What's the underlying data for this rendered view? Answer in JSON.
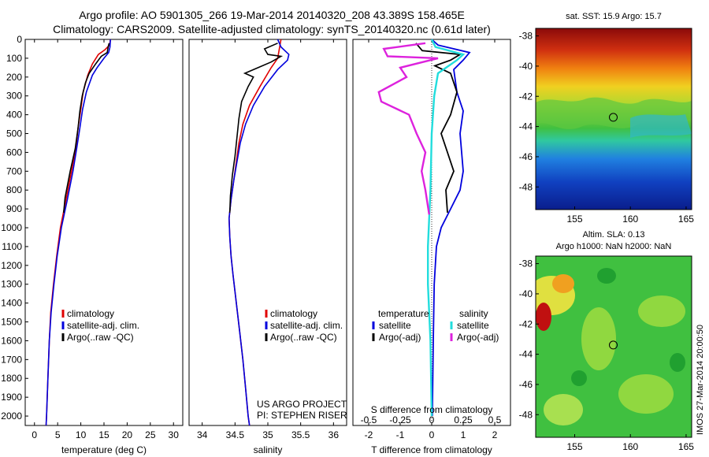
{
  "header": {
    "line1": "Argo profile: AO 5901305_266 19-Mar-2014 20140320_208 43.389S 158.465E",
    "line2": "Climatology: CARS2009. Satellite-adjusted climatology: synTS_20140320.nc (0.61d later)"
  },
  "side_text": "IMOS 27-Mar-2014 20:00:50",
  "colors": {
    "climatology": "#e00000",
    "satellite": "#0000dd",
    "argo": "#000000",
    "sal_satellite": "#22dddd",
    "sal_argo": "#dd22dd"
  },
  "chart_data": [
    {
      "id": "temperature-profile",
      "type": "line",
      "xlabel": "temperature (deg C)",
      "ylabel": "",
      "xlim": [
        -2,
        32
      ],
      "ylim": [
        2050,
        0
      ],
      "xticks": [
        0,
        5,
        10,
        15,
        20,
        25,
        30
      ],
      "yticks": [
        0,
        100,
        200,
        300,
        400,
        500,
        600,
        700,
        800,
        900,
        1000,
        1100,
        1200,
        1300,
        1400,
        1500,
        1600,
        1700,
        1800,
        1900,
        2000
      ],
      "legend": [
        "climatology",
        "satellite-adj. clim.",
        "Argo(..raw -QC)"
      ],
      "series": [
        {
          "name": "climatology",
          "color": "#e00000",
          "points": [
            [
              16.4,
              0
            ],
            [
              16.2,
              30
            ],
            [
              15.2,
              55
            ],
            [
              13.8,
              80
            ],
            [
              12.5,
              130
            ],
            [
              11.5,
              190
            ],
            [
              10.5,
              280
            ],
            [
              10,
              370
            ],
            [
              9.4,
              470
            ],
            [
              8.9,
              580
            ],
            [
              8,
              700
            ],
            [
              6.8,
              850
            ],
            [
              5.6,
              1000
            ],
            [
              4.8,
              1150
            ],
            [
              4.1,
              1300
            ],
            [
              3.5,
              1450
            ],
            [
              3.2,
              1600
            ],
            [
              2.9,
              1800
            ],
            [
              2.6,
              2000
            ],
            [
              2.5,
              2050
            ]
          ]
        },
        {
          "name": "satellite-adj. clim.",
          "color": "#0000dd",
          "points": [
            [
              16.4,
              0
            ],
            [
              16.3,
              40
            ],
            [
              16.0,
              70
            ],
            [
              15.0,
              100
            ],
            [
              13.5,
              150
            ],
            [
              12.5,
              190
            ],
            [
              11.2,
              280
            ],
            [
              10.4,
              370
            ],
            [
              9.8,
              470
            ],
            [
              9.1,
              580
            ],
            [
              8.3,
              700
            ],
            [
              7.1,
              850
            ],
            [
              5.8,
              1000
            ],
            [
              4.9,
              1150
            ],
            [
              4.2,
              1300
            ],
            [
              3.6,
              1450
            ],
            [
              3.2,
              1600
            ],
            [
              2.9,
              1800
            ],
            [
              2.6,
              2000
            ],
            [
              2.5,
              2050
            ]
          ]
        },
        {
          "name": "Argo(..raw -QC)",
          "color": "#000000",
          "points": [
            [
              16.1,
              20
            ],
            [
              15.9,
              40
            ],
            [
              15.7,
              70
            ],
            [
              14.4,
              90
            ],
            [
              13.2,
              130
            ],
            [
              11.8,
              180
            ],
            [
              11.0,
              230
            ],
            [
              10.3,
              300
            ],
            [
              9.8,
              380
            ],
            [
              9.4,
              470
            ],
            [
              8.8,
              580
            ],
            [
              7.7,
              700
            ],
            [
              6.6,
              840
            ],
            [
              6.3,
              920
            ]
          ]
        }
      ]
    },
    {
      "id": "salinity-profile",
      "type": "line",
      "xlabel": "salinity",
      "ylabel": "",
      "xlim": [
        33.8,
        36.2
      ],
      "ylim": [
        2050,
        0
      ],
      "xticks": [
        34,
        34.5,
        35,
        35.5,
        36
      ],
      "xticklabels": [
        "34",
        "34.5",
        "35",
        "35.5",
        "36"
      ],
      "legend": [
        "climatology",
        "satellite-adj. clim.",
        "Argo(..raw -QC)"
      ],
      "annotation": [
        "US ARGO PROJECT",
        "PI: STEPHEN RISER"
      ],
      "series": [
        {
          "name": "climatology",
          "color": "#e00000",
          "points": [
            [
              35.2,
              0
            ],
            [
              35.18,
              40
            ],
            [
              35.15,
              100
            ],
            [
              35.05,
              150
            ],
            [
              34.88,
              250
            ],
            [
              34.72,
              350
            ],
            [
              34.62,
              450
            ],
            [
              34.56,
              550
            ],
            [
              34.52,
              650
            ],
            [
              34.48,
              750
            ],
            [
              34.44,
              850
            ],
            [
              34.41,
              950
            ],
            [
              34.42,
              1050
            ],
            [
              34.44,
              1150
            ],
            [
              34.47,
              1250
            ],
            [
              34.52,
              1400
            ],
            [
              34.57,
              1550
            ],
            [
              34.62,
              1700
            ],
            [
              34.66,
              1850
            ],
            [
              34.7,
              2000
            ],
            [
              34.72,
              2050
            ]
          ]
        },
        {
          "name": "satellite-adj. clim.",
          "color": "#0000dd",
          "points": [
            [
              35.15,
              0
            ],
            [
              35.2,
              40
            ],
            [
              35.32,
              80
            ],
            [
              35.3,
              110
            ],
            [
              35.15,
              160
            ],
            [
              34.95,
              250
            ],
            [
              34.78,
              350
            ],
            [
              34.66,
              450
            ],
            [
              34.58,
              550
            ],
            [
              34.53,
              650
            ],
            [
              34.48,
              750
            ],
            [
              34.44,
              850
            ],
            [
              34.41,
              950
            ],
            [
              34.42,
              1050
            ],
            [
              34.44,
              1150
            ],
            [
              34.47,
              1250
            ],
            [
              34.52,
              1400
            ],
            [
              34.57,
              1550
            ],
            [
              34.62,
              1700
            ],
            [
              34.66,
              1850
            ],
            [
              34.7,
              2000
            ],
            [
              34.72,
              2050
            ]
          ]
        },
        {
          "name": "Argo(..raw -QC)",
          "color": "#000000",
          "points": [
            [
              35.15,
              20
            ],
            [
              34.95,
              50
            ],
            [
              35.0,
              80
            ],
            [
              35.2,
              90
            ],
            [
              35.05,
              120
            ],
            [
              34.85,
              150
            ],
            [
              34.65,
              180
            ],
            [
              34.78,
              200
            ],
            [
              34.7,
              250
            ],
            [
              34.6,
              330
            ],
            [
              34.56,
              420
            ],
            [
              34.53,
              520
            ],
            [
              34.5,
              620
            ],
            [
              34.46,
              720
            ],
            [
              34.43,
              830
            ],
            [
              34.42,
              920
            ]
          ]
        }
      ]
    },
    {
      "id": "difference-profile",
      "type": "line",
      "xlabel": "T difference from climatology",
      "xlabel_top": "S difference from climatology",
      "ylabel": "",
      "xlim": [
        -2.5,
        2.5
      ],
      "ylim": [
        2050,
        0
      ],
      "xticks": [
        -2,
        -1,
        0,
        1,
        2
      ],
      "sticks": [
        -0.5,
        -0.25,
        0,
        0.25,
        0.5
      ],
      "sticklabels": [
        "-0.5",
        "-0.25",
        "0",
        "0.25",
        "0.5"
      ],
      "legend_temperature": {
        "title": "temperature",
        "items": [
          "satellite",
          "Argo(-adj)"
        ]
      },
      "legend_salinity": {
        "title": "salinity",
        "items": [
          "satellite",
          "Argo(-adj)"
        ]
      },
      "series": [
        {
          "name": "temperature satellite",
          "color": "#0000dd",
          "points": [
            [
              0,
              0
            ],
            [
              0.2,
              30
            ],
            [
              1.2,
              70
            ],
            [
              1.0,
              110
            ],
            [
              0.7,
              160
            ],
            [
              0.8,
              280
            ],
            [
              1.0,
              380
            ],
            [
              0.9,
              500
            ],
            [
              0.95,
              600
            ],
            [
              1.0,
              700
            ],
            [
              0.9,
              800
            ],
            [
              0.6,
              900
            ],
            [
              0.3,
              1000
            ],
            [
              0.15,
              1100
            ],
            [
              0.08,
              1300
            ],
            [
              0.05,
              1600
            ],
            [
              0.02,
              2000
            ]
          ]
        },
        {
          "name": "temperature Argo(-adj)",
          "color": "#000000",
          "points": [
            [
              -0.5,
              20
            ],
            [
              -0.3,
              60
            ],
            [
              0.9,
              80
            ],
            [
              0.6,
              110
            ],
            [
              0.1,
              140
            ],
            [
              0.6,
              180
            ],
            [
              0.8,
              280
            ],
            [
              0.6,
              400
            ],
            [
              0.3,
              500
            ],
            [
              0.5,
              600
            ],
            [
              0.7,
              700
            ],
            [
              0.45,
              800
            ],
            [
              0.5,
              920
            ]
          ]
        },
        {
          "name": "salinity satellite",
          "color": "#22dddd",
          "points": [
            [
              0,
              0
            ],
            [
              0.03,
              40
            ],
            [
              0.25,
              80
            ],
            [
              0.2,
              110
            ],
            [
              0.05,
              180
            ],
            [
              0.02,
              300
            ],
            [
              0.0,
              500
            ],
            [
              -0.01,
              800
            ],
            [
              -0.03,
              1100
            ],
            [
              -0.03,
              1300
            ],
            [
              -0.01,
              1600
            ],
            [
              0,
              2000
            ]
          ]
        },
        {
          "name": "salinity Argo(-adj)",
          "color": "#dd22dd",
          "points": [
            [
              -0.05,
              20
            ],
            [
              -0.38,
              50
            ],
            [
              -0.35,
              90
            ],
            [
              0.05,
              100
            ],
            [
              -0.25,
              150
            ],
            [
              -0.2,
              200
            ],
            [
              -0.42,
              280
            ],
            [
              -0.4,
              330
            ],
            [
              -0.18,
              400
            ],
            [
              -0.12,
              500
            ],
            [
              -0.05,
              600
            ],
            [
              -0.08,
              700
            ],
            [
              -0.05,
              800
            ],
            [
              -0.02,
              930
            ]
          ]
        }
      ]
    },
    {
      "id": "sst-map",
      "type": "heatmap",
      "title": "sat. SST: 15.9 Argo: 15.7",
      "xlim": [
        151.5,
        165.5
      ],
      "ylim": [
        -49.5,
        -37.5
      ],
      "xticks": [
        155,
        160,
        165
      ],
      "yticks": [
        -38,
        -40,
        -42,
        -44,
        -46,
        -48
      ],
      "marker": {
        "lon": 158.465,
        "lat": -43.389
      }
    },
    {
      "id": "sla-map",
      "type": "heatmap",
      "title": "Altim. SLA: 0.13",
      "subtitle": "Argo h1000: NaN h2000: NaN",
      "xlim": [
        151.5,
        165.5
      ],
      "ylim": [
        -49.5,
        -37.5
      ],
      "xticks": [
        155,
        160,
        165
      ],
      "yticks": [
        -38,
        -40,
        -42,
        -44,
        -46,
        -48
      ],
      "marker": {
        "lon": 158.465,
        "lat": -43.389
      }
    }
  ]
}
